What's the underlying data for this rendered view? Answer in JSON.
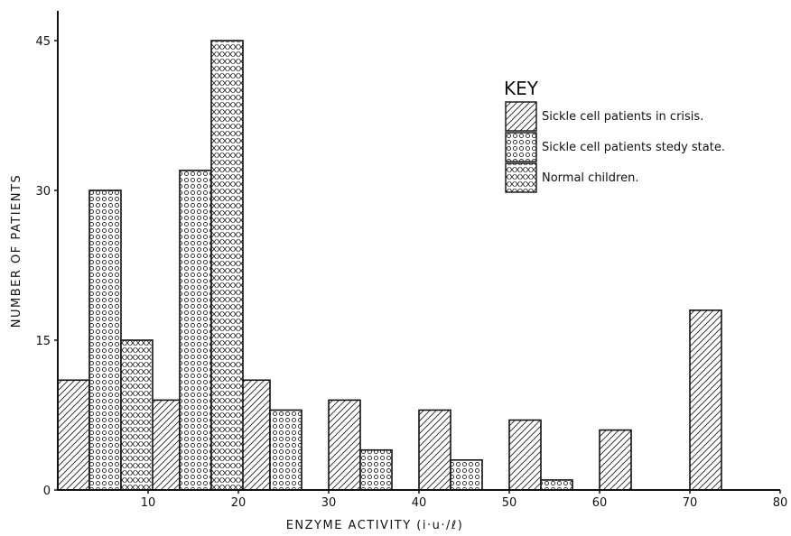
{
  "chart_data": {
    "type": "bar",
    "xlabel": "ENZYME ACTIVITY (i·u·/ℓ)",
    "ylabel": "NUMBER OF PATIENTS",
    "xlim": [
      0,
      80
    ],
    "ylim": [
      0,
      48
    ],
    "xticks": [
      0,
      10,
      20,
      30,
      40,
      50,
      60,
      70,
      80
    ],
    "yticks": [
      0,
      15,
      30,
      45
    ],
    "grid": false,
    "legend": {
      "title": "KEY",
      "position": "top-right"
    },
    "bin_starts": [
      0,
      10,
      20,
      30,
      40,
      50,
      60,
      70
    ],
    "bar_width": 3.5,
    "series": [
      {
        "name": "Sickle cell patients in crisis.",
        "pattern": "diagonal-hatch",
        "offset": 0,
        "values": [
          11,
          9,
          11,
          9,
          8,
          7,
          6,
          18
        ]
      },
      {
        "name": "Sickle cell patients stedy state.",
        "pattern": "circles",
        "offset": 3.5,
        "values": [
          30,
          32,
          8,
          4,
          3,
          1,
          null,
          null
        ]
      },
      {
        "name": "Normal children.",
        "pattern": "cross-hatch",
        "offset": 7,
        "values": [
          15,
          45,
          null,
          null,
          null,
          null,
          null,
          null
        ]
      }
    ]
  }
}
